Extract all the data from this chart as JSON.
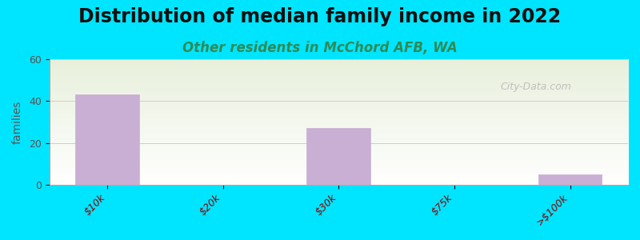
{
  "title": "Distribution of median family income in 2022",
  "subtitle": "Other residents in McChord AFB, WA",
  "categories": [
    "$10k",
    "$20k",
    "$30k",
    "$75k",
    ">$100k"
  ],
  "values": [
    43,
    0,
    27,
    0,
    5
  ],
  "bar_color": "#c9afd4",
  "bar_edge_color": "#c9afd4",
  "ylabel": "families",
  "ylim": [
    0,
    60
  ],
  "yticks": [
    0,
    20,
    40,
    60
  ],
  "background_outer": "#00e5ff",
  "background_inner_top": "#f0f5e8",
  "background_inner_bottom": "#ffffff",
  "title_fontsize": 17,
  "subtitle_fontsize": 12,
  "subtitle_color": "#2e8b57",
  "watermark": "City-Data.com",
  "bar_width": 0.55,
  "x_positions": [
    0,
    1,
    2,
    3,
    4
  ]
}
